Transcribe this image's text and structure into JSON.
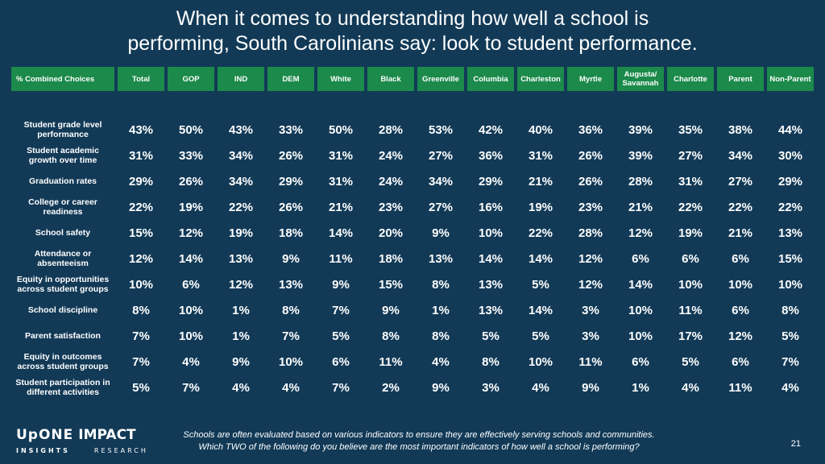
{
  "title": {
    "line1": "When it comes to understanding how well a school is",
    "line2": "performing, South Carolinians say: look to student performance."
  },
  "table": {
    "header_label": "% Combined Choices",
    "columns": [
      "Total",
      "GOP",
      "IND",
      "DEM",
      "White",
      "Black",
      "Greenville",
      "Columbia",
      "Charleston",
      "Myrtle",
      "Augusta/ Savannah",
      "Charlotte",
      "Parent",
      "Non-Parent"
    ],
    "rows": [
      {
        "label": "Student grade level performance",
        "values": [
          "43%",
          "50%",
          "43%",
          "33%",
          "50%",
          "28%",
          "53%",
          "42%",
          "40%",
          "36%",
          "39%",
          "35%",
          "38%",
          "44%"
        ]
      },
      {
        "label": "Student academic growth over time",
        "values": [
          "31%",
          "33%",
          "34%",
          "26%",
          "31%",
          "24%",
          "27%",
          "36%",
          "31%",
          "26%",
          "39%",
          "27%",
          "34%",
          "30%"
        ]
      },
      {
        "label": "Graduation rates",
        "values": [
          "29%",
          "26%",
          "34%",
          "29%",
          "31%",
          "24%",
          "34%",
          "29%",
          "21%",
          "26%",
          "28%",
          "31%",
          "27%",
          "29%"
        ]
      },
      {
        "label": "College or career readiness",
        "values": [
          "22%",
          "19%",
          "22%",
          "26%",
          "21%",
          "23%",
          "27%",
          "16%",
          "19%",
          "23%",
          "21%",
          "22%",
          "22%",
          "22%"
        ]
      },
      {
        "label": "School safety",
        "values": [
          "15%",
          "12%",
          "19%",
          "18%",
          "14%",
          "20%",
          "9%",
          "10%",
          "22%",
          "28%",
          "12%",
          "19%",
          "21%",
          "13%"
        ]
      },
      {
        "label": "Attendance or absenteeism",
        "values": [
          "12%",
          "14%",
          "13%",
          "9%",
          "11%",
          "18%",
          "13%",
          "14%",
          "14%",
          "12%",
          "6%",
          "6%",
          "6%",
          "15%"
        ]
      },
      {
        "label": "Equity in opportunities across student groups",
        "values": [
          "10%",
          "6%",
          "12%",
          "13%",
          "9%",
          "15%",
          "8%",
          "13%",
          "5%",
          "12%",
          "14%",
          "10%",
          "10%",
          "10%"
        ]
      },
      {
        "label": "School discipline",
        "values": [
          "8%",
          "10%",
          "1%",
          "8%",
          "7%",
          "9%",
          "1%",
          "13%",
          "14%",
          "3%",
          "10%",
          "11%",
          "6%",
          "8%"
        ]
      },
      {
        "label": "Parent satisfaction",
        "values": [
          "7%",
          "10%",
          "1%",
          "7%",
          "5%",
          "8%",
          "8%",
          "5%",
          "5%",
          "3%",
          "10%",
          "17%",
          "12%",
          "5%"
        ]
      },
      {
        "label": "Equity in outcomes across student groups",
        "values": [
          "7%",
          "4%",
          "9%",
          "10%",
          "6%",
          "11%",
          "4%",
          "8%",
          "10%",
          "11%",
          "6%",
          "5%",
          "6%",
          "7%"
        ]
      },
      {
        "label": "Student participation in different activities",
        "values": [
          "5%",
          "7%",
          "4%",
          "4%",
          "7%",
          "2%",
          "9%",
          "3%",
          "4%",
          "9%",
          "1%",
          "4%",
          "11%",
          "4%"
        ]
      }
    ]
  },
  "logo": {
    "upone": "UpONE",
    "impact": "IMPACT",
    "insights": "INSIGHTS",
    "research": "RESEARCH"
  },
  "footnote": {
    "line1": "Schools are often evaluated based on various indicators to ensure they are effectively serving schools and communities.",
    "line2": "Which TWO of the following do you believe are the most important indicators of how well a school is performing?"
  },
  "page_number": "21",
  "colors": {
    "background": "#123a57",
    "header_green": "#1b8a4a",
    "text": "#ffffff"
  }
}
